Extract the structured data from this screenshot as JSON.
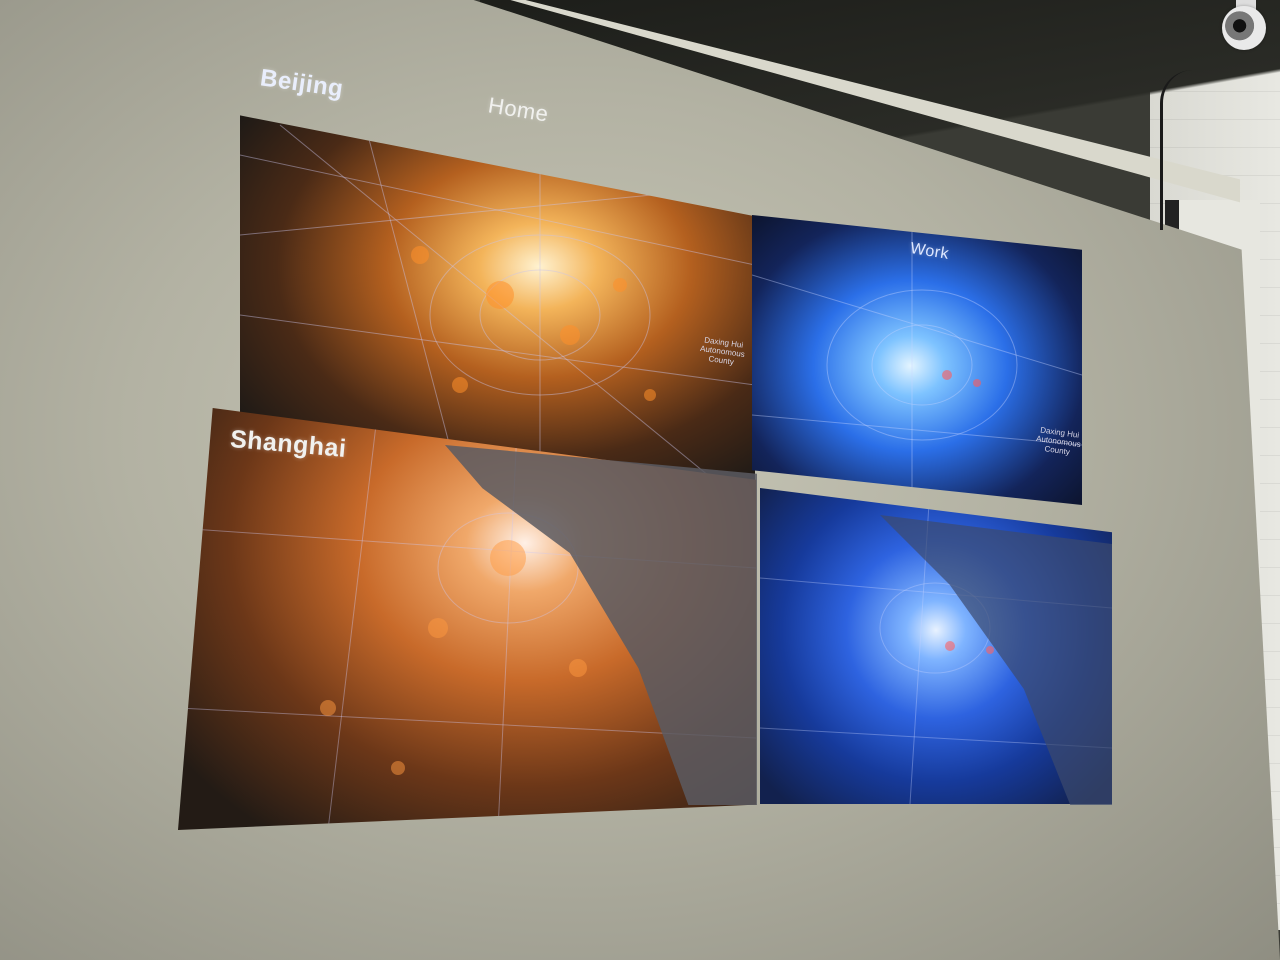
{
  "slide": {
    "label_beijing": "Beijing",
    "label_home": "Home",
    "label_work": "Work",
    "label_shanghai": "Shanghai",
    "map_label_daxing": "Daxing Hui\nAutonomous\nCounty"
  },
  "colors": {
    "home_map": "#e8852c",
    "work_map": "#2f6ef2",
    "screen": "#b9b8a8"
  }
}
